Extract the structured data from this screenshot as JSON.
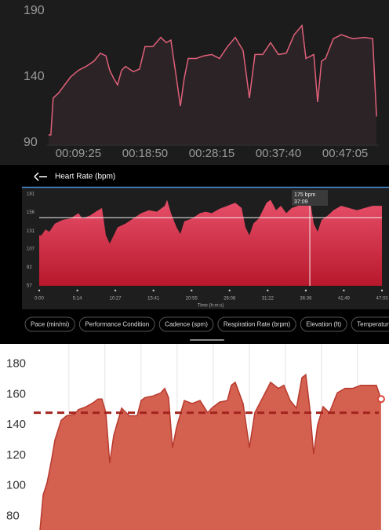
{
  "chart_data": [
    {
      "type": "line",
      "color": "#e0607a",
      "fill": "#2b2326",
      "grid": false,
      "x": [
        312,
        332,
        352,
        399,
        499,
        565,
        631,
        698,
        751,
        798,
        831,
        864,
        897,
        931,
        964,
        1030,
        1083,
        1130,
        1196,
        1263,
        1309,
        1349,
        1396,
        1429,
        1462,
        1496,
        1562,
        1629,
        1695,
        1761,
        1828,
        1894,
        1961,
        2014,
        2061,
        2127,
        2193,
        2260,
        2326,
        2393,
        2459,
        2493,
        2559,
        2592,
        2625,
        2659,
        2725,
        2792,
        2891,
        2991,
        3058,
        3091
      ],
      "values": [
        96,
        96,
        124,
        128,
        140,
        145,
        148,
        152,
        158,
        156,
        145,
        139,
        134,
        145,
        148,
        144,
        146,
        163,
        163,
        170,
        166,
        168,
        139,
        118,
        139,
        154,
        154,
        156,
        157,
        154,
        163,
        170,
        160,
        124,
        157,
        157,
        166,
        157,
        158,
        172,
        179,
        154,
        157,
        121,
        152,
        154,
        169,
        172,
        169,
        170,
        169,
        110
      ],
      "xlim": [
        300,
        3110
      ],
      "ylim": [
        90,
        190
      ],
      "yticks": [
        190,
        140,
        90
      ],
      "xticks": [
        {
          "value": 565,
          "label": "00:09:25"
        },
        {
          "value": 1130,
          "label": "00:18:50"
        },
        {
          "value": 1695,
          "label": "00:28:15"
        },
        {
          "value": 2260,
          "label": "00:37:40"
        },
        {
          "value": 2825,
          "label": "00:47:05"
        }
      ]
    },
    {
      "type": "area",
      "title": "Heart Rate (bpm)",
      "x_label": "Time (h:m:s)",
      "color": "#d8334f",
      "grid": false,
      "x": [
        0,
        19,
        52,
        84,
        129,
        194,
        258,
        323,
        355,
        420,
        485,
        517,
        549,
        581,
        614,
        646,
        711,
        775,
        840,
        904,
        969,
        1034,
        1053,
        1085,
        1131,
        1163,
        1195,
        1260,
        1324,
        1370,
        1421,
        1486,
        1550,
        1615,
        1667,
        1699,
        1731,
        1764,
        1809,
        1873,
        1906,
        1951,
        1990,
        2035,
        2080,
        2132,
        2196,
        2229,
        2261,
        2293,
        2326,
        2377,
        2423,
        2487,
        2552,
        2616,
        2681,
        2746,
        2823
      ],
      "values": [
        125,
        125,
        133,
        130,
        141,
        146,
        148,
        155,
        148,
        152,
        159,
        162,
        125,
        114,
        125,
        136,
        141,
        148,
        155,
        159,
        157,
        165,
        173,
        155,
        136,
        127,
        144,
        148,
        155,
        157,
        155,
        161,
        165,
        169,
        162,
        136,
        125,
        141,
        148,
        169,
        173,
        159,
        165,
        155,
        162,
        165,
        173,
        175,
        141,
        130,
        146,
        152,
        159,
        165,
        162,
        159,
        162,
        165,
        165
      ],
      "xlim": [
        0,
        2823
      ],
      "ylim": [
        57,
        181
      ],
      "yticks": [
        181,
        156,
        131,
        107,
        82,
        57
      ],
      "xticks": [
        {
          "value": 0,
          "label": "0:00"
        },
        {
          "value": 314,
          "label": "5:14"
        },
        {
          "value": 627,
          "label": "10:27"
        },
        {
          "value": 941,
          "label": "15:41"
        },
        {
          "value": 1255,
          "label": "20:55"
        },
        {
          "value": 1568,
          "label": "26:08"
        },
        {
          "value": 1882,
          "label": "31:22"
        },
        {
          "value": 2196,
          "label": "36:36"
        },
        {
          "value": 2509,
          "label": "41:49"
        },
        {
          "value": 2823,
          "label": "47:03"
        }
      ],
      "reference_line": 149,
      "cursor": {
        "x": 2229,
        "label": "175 bpm",
        "time": "37:09"
      },
      "buttons": [
        "Pace (min/mi)",
        "Performance Condition",
        "Cadence (spm)",
        "Respiration Rate (brpm)",
        "Elevation (ft)",
        "Temperature"
      ]
    },
    {
      "type": "area",
      "color": "#d4604f",
      "line_color": "#b73a2e",
      "grid": "x",
      "end_marker": true,
      "x": [
        0,
        26,
        59,
        91,
        124,
        176,
        222,
        287,
        319,
        385,
        450,
        482,
        515,
        548,
        580,
        613,
        678,
        743,
        808,
        841,
        874,
        939,
        1004,
        1037,
        1069,
        1102,
        1134,
        1200,
        1265,
        1330,
        1395,
        1428,
        1493,
        1558,
        1591,
        1623,
        1689,
        1741,
        1786,
        1852,
        1917,
        1982,
        2028,
        2080,
        2132,
        2178,
        2210,
        2243,
        2275,
        2308,
        2354,
        2406,
        2471,
        2536,
        2601,
        2667,
        2732,
        2797,
        2836
      ],
      "values": [
        71,
        94,
        102,
        115,
        130,
        143,
        146,
        147,
        150,
        152,
        155,
        157,
        157,
        148,
        115,
        133,
        151,
        146,
        146,
        156,
        158,
        159,
        161,
        164,
        158,
        125,
        138,
        156,
        154,
        156,
        148,
        151,
        155,
        156,
        166,
        168,
        154,
        125,
        148,
        158,
        168,
        164,
        166,
        156,
        151,
        171,
        173,
        151,
        121,
        140,
        152,
        148,
        161,
        164,
        164,
        166,
        166,
        166,
        157
      ],
      "xlim": [
        0,
        2843
      ],
      "ylim": [
        71,
        187
      ],
      "yticks": [
        180,
        160,
        140,
        120,
        100,
        80
      ],
      "xticks": [
        240,
        540,
        840,
        1140,
        1440,
        1740,
        2040,
        2340,
        2640
      ],
      "reference_line": 148
    }
  ]
}
